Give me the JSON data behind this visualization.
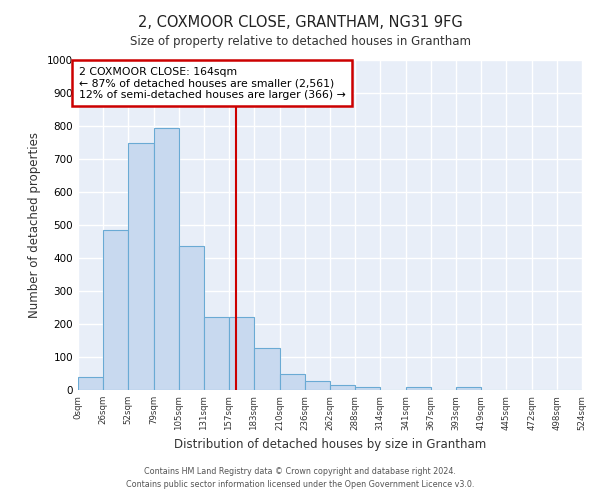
{
  "title": "2, COXMOOR CLOSE, GRANTHAM, NG31 9FG",
  "subtitle": "Size of property relative to detached houses in Grantham",
  "xlabel": "Distribution of detached houses by size in Grantham",
  "ylabel": "Number of detached properties",
  "bin_labels": [
    "0sqm",
    "26sqm",
    "52sqm",
    "79sqm",
    "105sqm",
    "131sqm",
    "157sqm",
    "183sqm",
    "210sqm",
    "236sqm",
    "262sqm",
    "288sqm",
    "314sqm",
    "341sqm",
    "367sqm",
    "393sqm",
    "419sqm",
    "445sqm",
    "472sqm",
    "498sqm",
    "524sqm"
  ],
  "bar_heights": [
    40,
    485,
    750,
    795,
    435,
    220,
    220,
    128,
    50,
    27,
    15,
    10,
    0,
    10,
    0,
    10,
    0,
    0,
    0,
    0
  ],
  "bar_color": "#c8d9ef",
  "bar_edge_color": "#6aaad4",
  "vline_x": 164,
  "vline_color": "#cc0000",
  "ylim": [
    0,
    1000
  ],
  "annotation_text_line1": "2 COXMOOR CLOSE: 164sqm",
  "annotation_text_line2": "← 87% of detached houses are smaller (2,561)",
  "annotation_text_line3": "12% of semi-detached houses are larger (366) →",
  "annotation_box_color": "#cc0000",
  "annotation_fill": "#ffffff",
  "footer_line1": "Contains HM Land Registry data © Crown copyright and database right 2024.",
  "footer_line2": "Contains public sector information licensed under the Open Government Licence v3.0.",
  "background_color": "#e8eef8",
  "grid_color": "#ffffff",
  "bin_edges": [
    0,
    26,
    52,
    79,
    105,
    131,
    157,
    183,
    210,
    236,
    262,
    288,
    314,
    341,
    367,
    393,
    419,
    445,
    472,
    498,
    524
  ]
}
